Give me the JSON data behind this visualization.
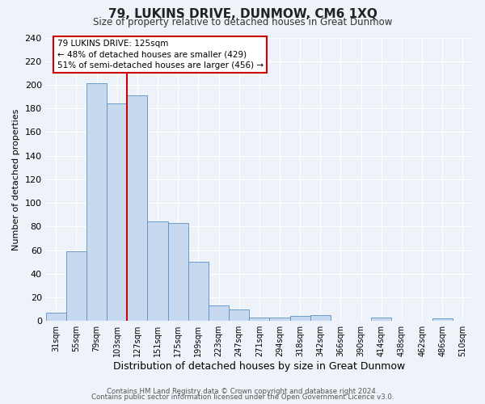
{
  "title": "79, LUKINS DRIVE, DUNMOW, CM6 1XQ",
  "subtitle": "Size of property relative to detached houses in Great Dunmow",
  "xlabel": "Distribution of detached houses by size in Great Dunmow",
  "ylabel": "Number of detached properties",
  "bin_labels": [
    "31sqm",
    "55sqm",
    "79sqm",
    "103sqm",
    "127sqm",
    "151sqm",
    "175sqm",
    "199sqm",
    "223sqm",
    "247sqm",
    "271sqm",
    "294sqm",
    "318sqm",
    "342sqm",
    "366sqm",
    "390sqm",
    "414sqm",
    "438sqm",
    "462sqm",
    "486sqm",
    "510sqm"
  ],
  "bar_values": [
    7,
    59,
    201,
    184,
    191,
    84,
    83,
    50,
    13,
    10,
    3,
    3,
    4,
    5,
    0,
    0,
    3,
    0,
    0,
    2,
    0
  ],
  "bar_color": "#c6d9ee",
  "bar_edge_color": "#5a8fc2",
  "vline_color": "#cc0000",
  "annotation_title": "79 LUKINS DRIVE: 125sqm",
  "annotation_line1": "← 48% of detached houses are smaller (429)",
  "annotation_line2": "51% of semi-detached houses are larger (456) →",
  "annotation_box_color": "#ffffff",
  "annotation_box_edge": "#cc0000",
  "ylim": [
    0,
    240
  ],
  "yticks": [
    0,
    20,
    40,
    60,
    80,
    100,
    120,
    140,
    160,
    180,
    200,
    220,
    240
  ],
  "footer_line1": "Contains HM Land Registry data © Crown copyright and database right 2024.",
  "footer_line2": "Contains public sector information licensed under the Open Government Licence v3.0.",
  "bg_color": "#eef2f9",
  "grid_color": "#ffffff"
}
